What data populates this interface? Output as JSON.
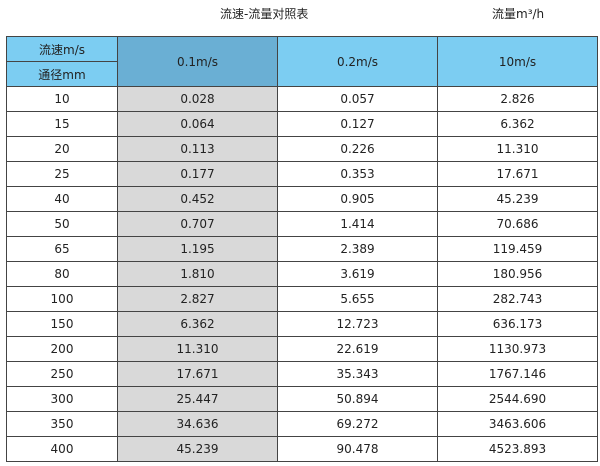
{
  "title": "流速-流量对照表",
  "unit": "流量m³/h",
  "header": {
    "velocity_label": "流速m/s",
    "diameter_label": "通径mm",
    "columns": [
      "0.1m/s",
      "0.2m/s",
      "10m/s"
    ]
  },
  "rows": [
    [
      "10",
      "0.028",
      "0.057",
      "2.826"
    ],
    [
      "15",
      "0.064",
      "0.127",
      "6.362"
    ],
    [
      "20",
      "0.113",
      "0.226",
      "11.310"
    ],
    [
      "25",
      "0.177",
      "0.353",
      "17.671"
    ],
    [
      "40",
      "0.452",
      "0.905",
      "45.239"
    ],
    [
      "50",
      "0.707",
      "1.414",
      "70.686"
    ],
    [
      "65",
      "1.195",
      "2.389",
      "119.459"
    ],
    [
      "80",
      "1.810",
      "3.619",
      "180.956"
    ],
    [
      "100",
      "2.827",
      "5.655",
      "282.743"
    ],
    [
      "150",
      "6.362",
      "12.723",
      "636.173"
    ],
    [
      "200",
      "11.310",
      "22.619",
      "1130.973"
    ],
    [
      "250",
      "17.671",
      "35.343",
      "1767.146"
    ],
    [
      "300",
      "25.447",
      "50.894",
      "2544.690"
    ],
    [
      "350",
      "34.636",
      "69.272",
      "3463.606"
    ],
    [
      "400",
      "45.239",
      "90.478",
      "4523.893"
    ]
  ]
}
